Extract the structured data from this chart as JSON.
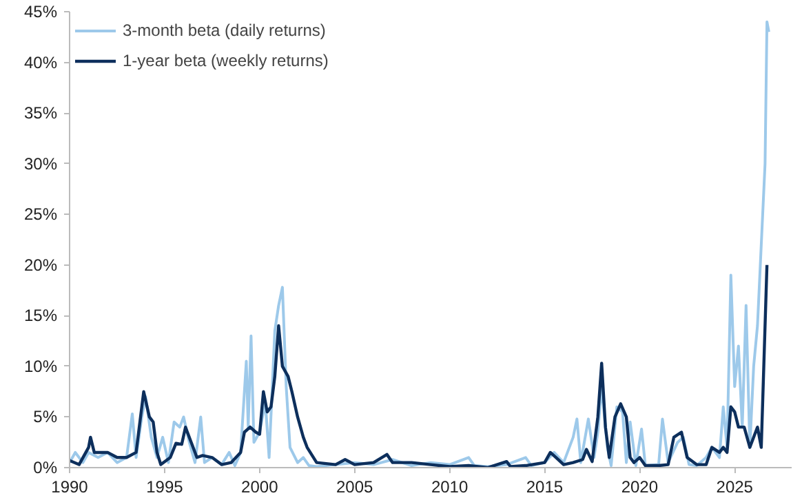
{
  "chart_data": {
    "type": "line",
    "xlim": [
      1990,
      2028
    ],
    "ylim": [
      0,
      45
    ],
    "xticks": [
      1990,
      1995,
      2000,
      2005,
      2010,
      2015,
      2020,
      2025
    ],
    "yticks": [
      {
        "value": 0,
        "label": "0%"
      },
      {
        "value": 5,
        "label": "5%"
      },
      {
        "value": 10,
        "label": "10%"
      },
      {
        "value": 15,
        "label": "15%"
      },
      {
        "value": 20,
        "label": "20%"
      },
      {
        "value": 25,
        "label": "25%"
      },
      {
        "value": 30,
        "label": "30%"
      },
      {
        "value": 35,
        "label": "35%"
      },
      {
        "value": 40,
        "label": "40%"
      },
      {
        "value": 45,
        "label": "45%"
      }
    ],
    "grid": false,
    "legend": "top left",
    "marker": "none",
    "line_style": "solid",
    "series": [
      {
        "name": "3-month beta (daily returns)",
        "color": "#9dc9ea",
        "x": [
          1990,
          1990.3,
          1990.7,
          1991,
          1991.5,
          1992,
          1992.5,
          1993,
          1993.3,
          1993.5,
          1993.8,
          1994,
          1994.3,
          1994.6,
          1994.9,
          1995.2,
          1995.5,
          1995.8,
          1996,
          1996.3,
          1996.6,
          1996.9,
          1997.1,
          1997.5,
          1998,
          1998.4,
          1998.7,
          1999,
          1999.3,
          1999.4,
          1999.55,
          1999.7,
          2000,
          2000.3,
          2000.5,
          2000.8,
          2001,
          2001.2,
          2001.4,
          2001.6,
          2002,
          2002.3,
          2002.6,
          2003,
          2004,
          2005,
          2006,
          2007,
          2008,
          2009,
          2010,
          2011,
          2011.3,
          2012,
          2013,
          2014,
          2014.3,
          2015,
          2015.5,
          2016,
          2016.5,
          2016.7,
          2016.9,
          2017.3,
          2017.6,
          2017.8,
          2018,
          2018.3,
          2018.5,
          2018.8,
          2019.1,
          2019.3,
          2019.5,
          2019.8,
          2020.1,
          2020.3,
          2021,
          2021.2,
          2021.5,
          2022,
          2022.3,
          2022.6,
          2023,
          2023.5,
          2023.8,
          2024.2,
          2024.4,
          2024.6,
          2024.8,
          2025,
          2025.2,
          2025.4,
          2025.6,
          2025.8,
          2026,
          2026.2,
          2026.4,
          2026.6,
          2026.7,
          2026.8
        ],
        "values": [
          0.5,
          1.5,
          0.5,
          1.5,
          1.0,
          1.5,
          0.5,
          1.0,
          5.3,
          1.0,
          5,
          7,
          3,
          1.0,
          3.0,
          0.5,
          4.5,
          4.0,
          5.0,
          2.5,
          0.5,
          5.0,
          0.5,
          1.0,
          0.3,
          1.5,
          0.2,
          1.5,
          10.5,
          4,
          13,
          2.5,
          3.5,
          6.5,
          1.0,
          13.5,
          16,
          17.8,
          8,
          2,
          0.5,
          1.0,
          0.2,
          0.1,
          0.3,
          0.5,
          0.3,
          0.8,
          0.2,
          0.5,
          0.3,
          1.0,
          0.2,
          0.1,
          0.3,
          1.0,
          0.2,
          0.5,
          1.5,
          0.5,
          3.0,
          4.8,
          0.5,
          4.8,
          1.0,
          3.5,
          8,
          2,
          0.2,
          6.0,
          5.5,
          0.5,
          4.5,
          0.2,
          3.8,
          0.2,
          0.3,
          4.8,
          0.5,
          2.5,
          3.0,
          0.3,
          0.2,
          1.0,
          2.0,
          1.0,
          6.0,
          2.0,
          19.0,
          8,
          12,
          4,
          16,
          2.0,
          10.0,
          14,
          22,
          30,
          44,
          43
        ]
      },
      {
        "name": "1-year beta (weekly returns)",
        "color": "#0d2f5c",
        "x": [
          1990,
          1990.5,
          1991,
          1991.1,
          1991.3,
          1992,
          1992.5,
          1993,
          1993.5,
          1993.9,
          1994.2,
          1994.4,
          1994.6,
          1994.8,
          1995.3,
          1995.6,
          1995.9,
          1996.1,
          1996.4,
          1996.7,
          1997,
          1997.5,
          1998,
          1998.5,
          1999,
          1999.2,
          1999.5,
          1999.8,
          2000,
          2000.2,
          2000.4,
          2000.6,
          2000.8,
          2001,
          2001.2,
          2001.5,
          2001.7,
          2002,
          2002.3,
          2002.5,
          2003,
          2004,
          2004.5,
          2005,
          2006,
          2006.7,
          2007,
          2008,
          2009,
          2010,
          2011,
          2012,
          2013,
          2013.2,
          2014,
          2015,
          2015.3,
          2015.6,
          2016,
          2016.5,
          2017,
          2017.2,
          2017.5,
          2017.8,
          2018,
          2018.2,
          2018.4,
          2018.7,
          2019,
          2019.3,
          2019.5,
          2019.7,
          2020,
          2020.3,
          2021,
          2021.5,
          2021.8,
          2022.2,
          2022.5,
          2023,
          2023.5,
          2023.8,
          2024.2,
          2024.4,
          2024.6,
          2024.8,
          2025,
          2025.2,
          2025.5,
          2025.8,
          2026.2,
          2026.4,
          2026.7
        ],
        "values": [
          0.7,
          0.3,
          2.0,
          3.0,
          1.5,
          1.5,
          1.0,
          1.0,
          1.5,
          7.5,
          5.0,
          4.5,
          1.5,
          0.3,
          1.0,
          2.4,
          2.3,
          4.0,
          2.5,
          1.0,
          1.2,
          1.0,
          0.3,
          0.5,
          1.5,
          3.5,
          4.0,
          3.5,
          3.3,
          7.5,
          5.5,
          6.0,
          9.0,
          14.0,
          10.0,
          9.0,
          7.5,
          5.0,
          3.0,
          2.0,
          0.5,
          0.3,
          0.8,
          0.3,
          0.5,
          1.3,
          0.5,
          0.5,
          0.3,
          0.1,
          0.2,
          0.0,
          0.6,
          0.1,
          0.2,
          0.5,
          1.5,
          1.0,
          0.3,
          0.5,
          0.8,
          1.8,
          0.6,
          5,
          10.3,
          4,
          1.0,
          5,
          6.3,
          5,
          1.0,
          0.5,
          1.0,
          0.2,
          0.2,
          0.3,
          3.0,
          3.5,
          1.0,
          0.3,
          0.3,
          2.0,
          1.5,
          2.0,
          1.5,
          6.0,
          5.5,
          4.0,
          4.0,
          2.0,
          4.0,
          2.0,
          20.0
        ]
      }
    ]
  }
}
